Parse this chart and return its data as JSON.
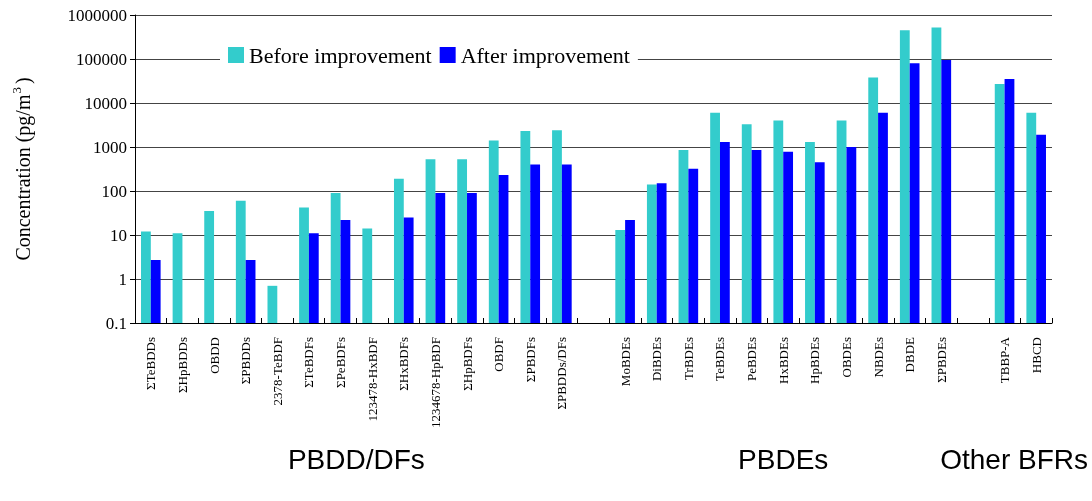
{
  "chart_data": {
    "type": "bar",
    "ylabel": "Concentration (pg/m$^{3}$)",
    "categories": [
      "ΣTeBDDs",
      "ΣHpBDDs",
      "OBDD",
      "ΣPBDDs",
      "2378-TeBDF",
      "ΣTeBDFs",
      "ΣPeBDFs",
      "123478-HxBDF",
      "ΣHxBDFs",
      "1234678-HpBDF",
      "ΣHpBDFs",
      "OBDF",
      "ΣPBDFs",
      "ΣPBDDs/DFs",
      null,
      "MoBDEs",
      "DiBDEs",
      "TrBDEs",
      "TeBDEs",
      "PeBDEs",
      "HxBDEs",
      "HpBDEs",
      "OBDEs",
      "NBDEs",
      "DBDE",
      "ΣPBDEs",
      null,
      "TBBP-A",
      "HBCD"
    ],
    "series": [
      {
        "name": "Before improvement",
        "color": "#33cccc",
        "values": [
          12,
          11,
          35,
          60,
          0.7,
          42,
          90,
          14,
          190,
          530,
          530,
          1400,
          2300,
          2400,
          null,
          13,
          140,
          850,
          6000,
          3300,
          4000,
          1300,
          4000,
          38000,
          450000,
          520000,
          null,
          27000,
          6000
        ]
      },
      {
        "name": "After improvement",
        "color": "#0000ff",
        "values": [
          2.7,
          null,
          null,
          2.7,
          null,
          11,
          22,
          null,
          25,
          90,
          90,
          230,
          400,
          400,
          null,
          22,
          150,
          320,
          1300,
          850,
          780,
          450,
          1000,
          6000,
          80000,
          95000,
          null,
          35000,
          1900
        ]
      }
    ],
    "log": true,
    "ylim": [
      0.1,
      1000000
    ],
    "yticks": [
      0.1,
      1,
      10,
      100,
      1000,
      10000,
      100000,
      1000000
    ],
    "grid": "y",
    "legend": "top",
    "annotations": [
      "PBDD/DFs",
      "PBDEs",
      "Other BFRs"
    ]
  }
}
